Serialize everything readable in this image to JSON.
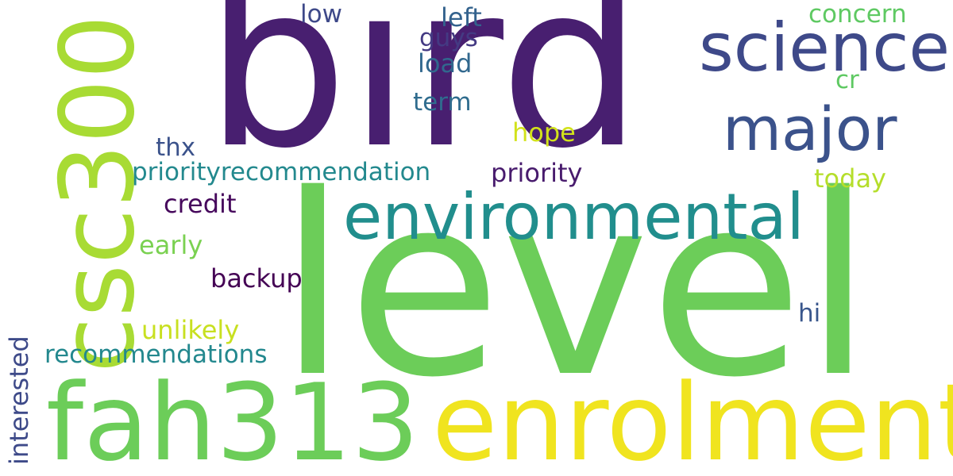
{
  "wordcloud": {
    "words": [
      {
        "id": "bird",
        "text": "bird",
        "color": "#481f70"
      },
      {
        "id": "level",
        "text": "level",
        "color": "#6ccd59"
      },
      {
        "id": "enrolment",
        "text": "enrolment",
        "color": "#f0e41f"
      },
      {
        "id": "fah313",
        "text": "fah313",
        "color": "#6ccd59"
      },
      {
        "id": "csc300",
        "text": "csc300",
        "color": "#a8db34"
      },
      {
        "id": "environmental",
        "text": "environmental",
        "color": "#218e8d"
      },
      {
        "id": "science",
        "text": "science",
        "color": "#3e4989"
      },
      {
        "id": "major",
        "text": "major",
        "color": "#3b528b"
      },
      {
        "id": "priorityrecommendation",
        "text": "priorityrecommendation",
        "color": "#23898e"
      },
      {
        "id": "priority",
        "text": "priority",
        "color": "#481b6d"
      },
      {
        "id": "recommendations",
        "text": "recommendations",
        "color": "#23888e"
      },
      {
        "id": "interested",
        "text": "interested",
        "color": "#3e4a89"
      },
      {
        "id": "backup",
        "text": "backup",
        "color": "#440154"
      },
      {
        "id": "unlikely",
        "text": "unlikely",
        "color": "#c8e020"
      },
      {
        "id": "early",
        "text": "early",
        "color": "#7ad151"
      },
      {
        "id": "credit",
        "text": "credit",
        "color": "#46085c"
      },
      {
        "id": "thx",
        "text": "thx",
        "color": "#3b528b"
      },
      {
        "id": "hope",
        "text": "hope",
        "color": "#d2e21b"
      },
      {
        "id": "today",
        "text": "today",
        "color": "#b5de2b"
      },
      {
        "id": "hi",
        "text": "hi",
        "color": "#39568c"
      },
      {
        "id": "term",
        "text": "term",
        "color": "#2f6c8e"
      },
      {
        "id": "load",
        "text": "load",
        "color": "#31688e"
      },
      {
        "id": "guys",
        "text": "guys",
        "color": "#443a83"
      },
      {
        "id": "left",
        "text": "left",
        "color": "#33628d"
      },
      {
        "id": "low",
        "text": "low",
        "color": "#3e4989"
      },
      {
        "id": "concern",
        "text": "concern",
        "color": "#5ec962"
      },
      {
        "id": "cr",
        "text": "cr",
        "color": "#5ec962"
      }
    ]
  }
}
